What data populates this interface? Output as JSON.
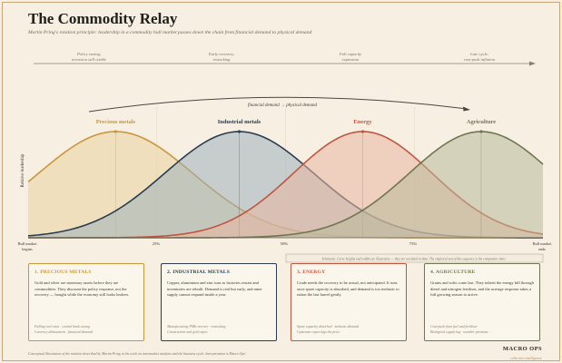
{
  "header": {
    "title": "The Commodity Relay",
    "subtitle": "Martin Pring's rotation principle: leadership in a commodity bull market passes down the chain from financial demand to physical demand"
  },
  "cycle_stages": [
    {
      "line1": "Policy easing,",
      "line2": "recession still visible"
    },
    {
      "line1": "Early recovery,",
      "line2": "restocking"
    },
    {
      "line1": "Full capacity",
      "line2": "expansion"
    },
    {
      "line1": "Late cycle,",
      "line2": "cost-push inflation"
    }
  ],
  "demand_arrow_label": "financial demand → physical demand",
  "y_axis_label": "Relative leadership",
  "x_axis": {
    "start_line1": "Bull market",
    "start_line2": "begins",
    "end_line1": "Bull market",
    "end_line2": "ends",
    "ticks": [
      "25%",
      "50%",
      "75%"
    ]
  },
  "schematic_note": "Schematic. Curve heights and widths are illustrative — they are not fitted to data. The empirical test of this sequence is the companion chart.",
  "colors": {
    "precious": "#c9963b",
    "industrial": "#2b3b52",
    "energy": "#c0553f",
    "agriculture": "#6e7650"
  },
  "chart_data": {
    "type": "area",
    "x_domain": [
      0,
      1
    ],
    "series": [
      {
        "name": "Precious metals",
        "peak": 0.17,
        "width": 0.15,
        "color": "#c9963b",
        "fill": "#e9d29e"
      },
      {
        "name": "Industrial metals",
        "peak": 0.41,
        "width": 0.145,
        "color": "#2b3b52",
        "fill": "#9fb0b9"
      },
      {
        "name": "Energy",
        "peak": 0.65,
        "width": 0.135,
        "color": "#c0553f",
        "fill": "#e9b7a3"
      },
      {
        "name": "Agriculture",
        "peak": 0.88,
        "width": 0.14,
        "color": "#6e7650",
        "fill": "#b8b99b"
      }
    ]
  },
  "cards": [
    {
      "title": "1. PRECIOUS METALS",
      "body": "Gold and silver are monetary assets before they are commodities. They discount the policy response, not the recovery — bought while the economy still looks broken.",
      "foot1": "Falling real rates · central bank easing",
      "foot2": "Currency debasement · financial demand",
      "color": "#c9963b"
    },
    {
      "title": "2. INDUSTRIAL METALS",
      "body": "Copper, aluminium and zinc turn as factories restart and inventories are rebuilt. Demand is real but early, and mine supply cannot respond inside a year.",
      "foot1": "Manufacturing PMIs recover · restocking",
      "foot2": "Construction and grid capex",
      "color": "#2b3b52"
    },
    {
      "title": "3. ENERGY",
      "body": "Crude needs the recovery to be actual, not anticipated. It runs once spare capacity is absorbed, and demand is too inelastic to ration the last barrel gently.",
      "foot1": "Spare capacity absorbed · inelastic demand",
      "foot2": "Upstream capex lags the price",
      "color": "#c0553f"
    },
    {
      "title": "4. AGRICULTURE",
      "body": "Grains and softs come last. They inherit the energy bill through diesel and nitrogen fertiliser, and the acreage response takes a full growing season to arrive.",
      "foot1": "Cost-push from fuel and fertiliser",
      "foot2": "Biological supply lag · weather premium",
      "color": "#6e7650"
    }
  ],
  "footnote": "Conceptual illustration of the rotation described by Martin Pring in his work on intermarket analysis and the business cycle. Interpretation is Macro Ops'.",
  "brand": {
    "name": "MACRO OPS",
    "tagline": "collective intelligence"
  }
}
